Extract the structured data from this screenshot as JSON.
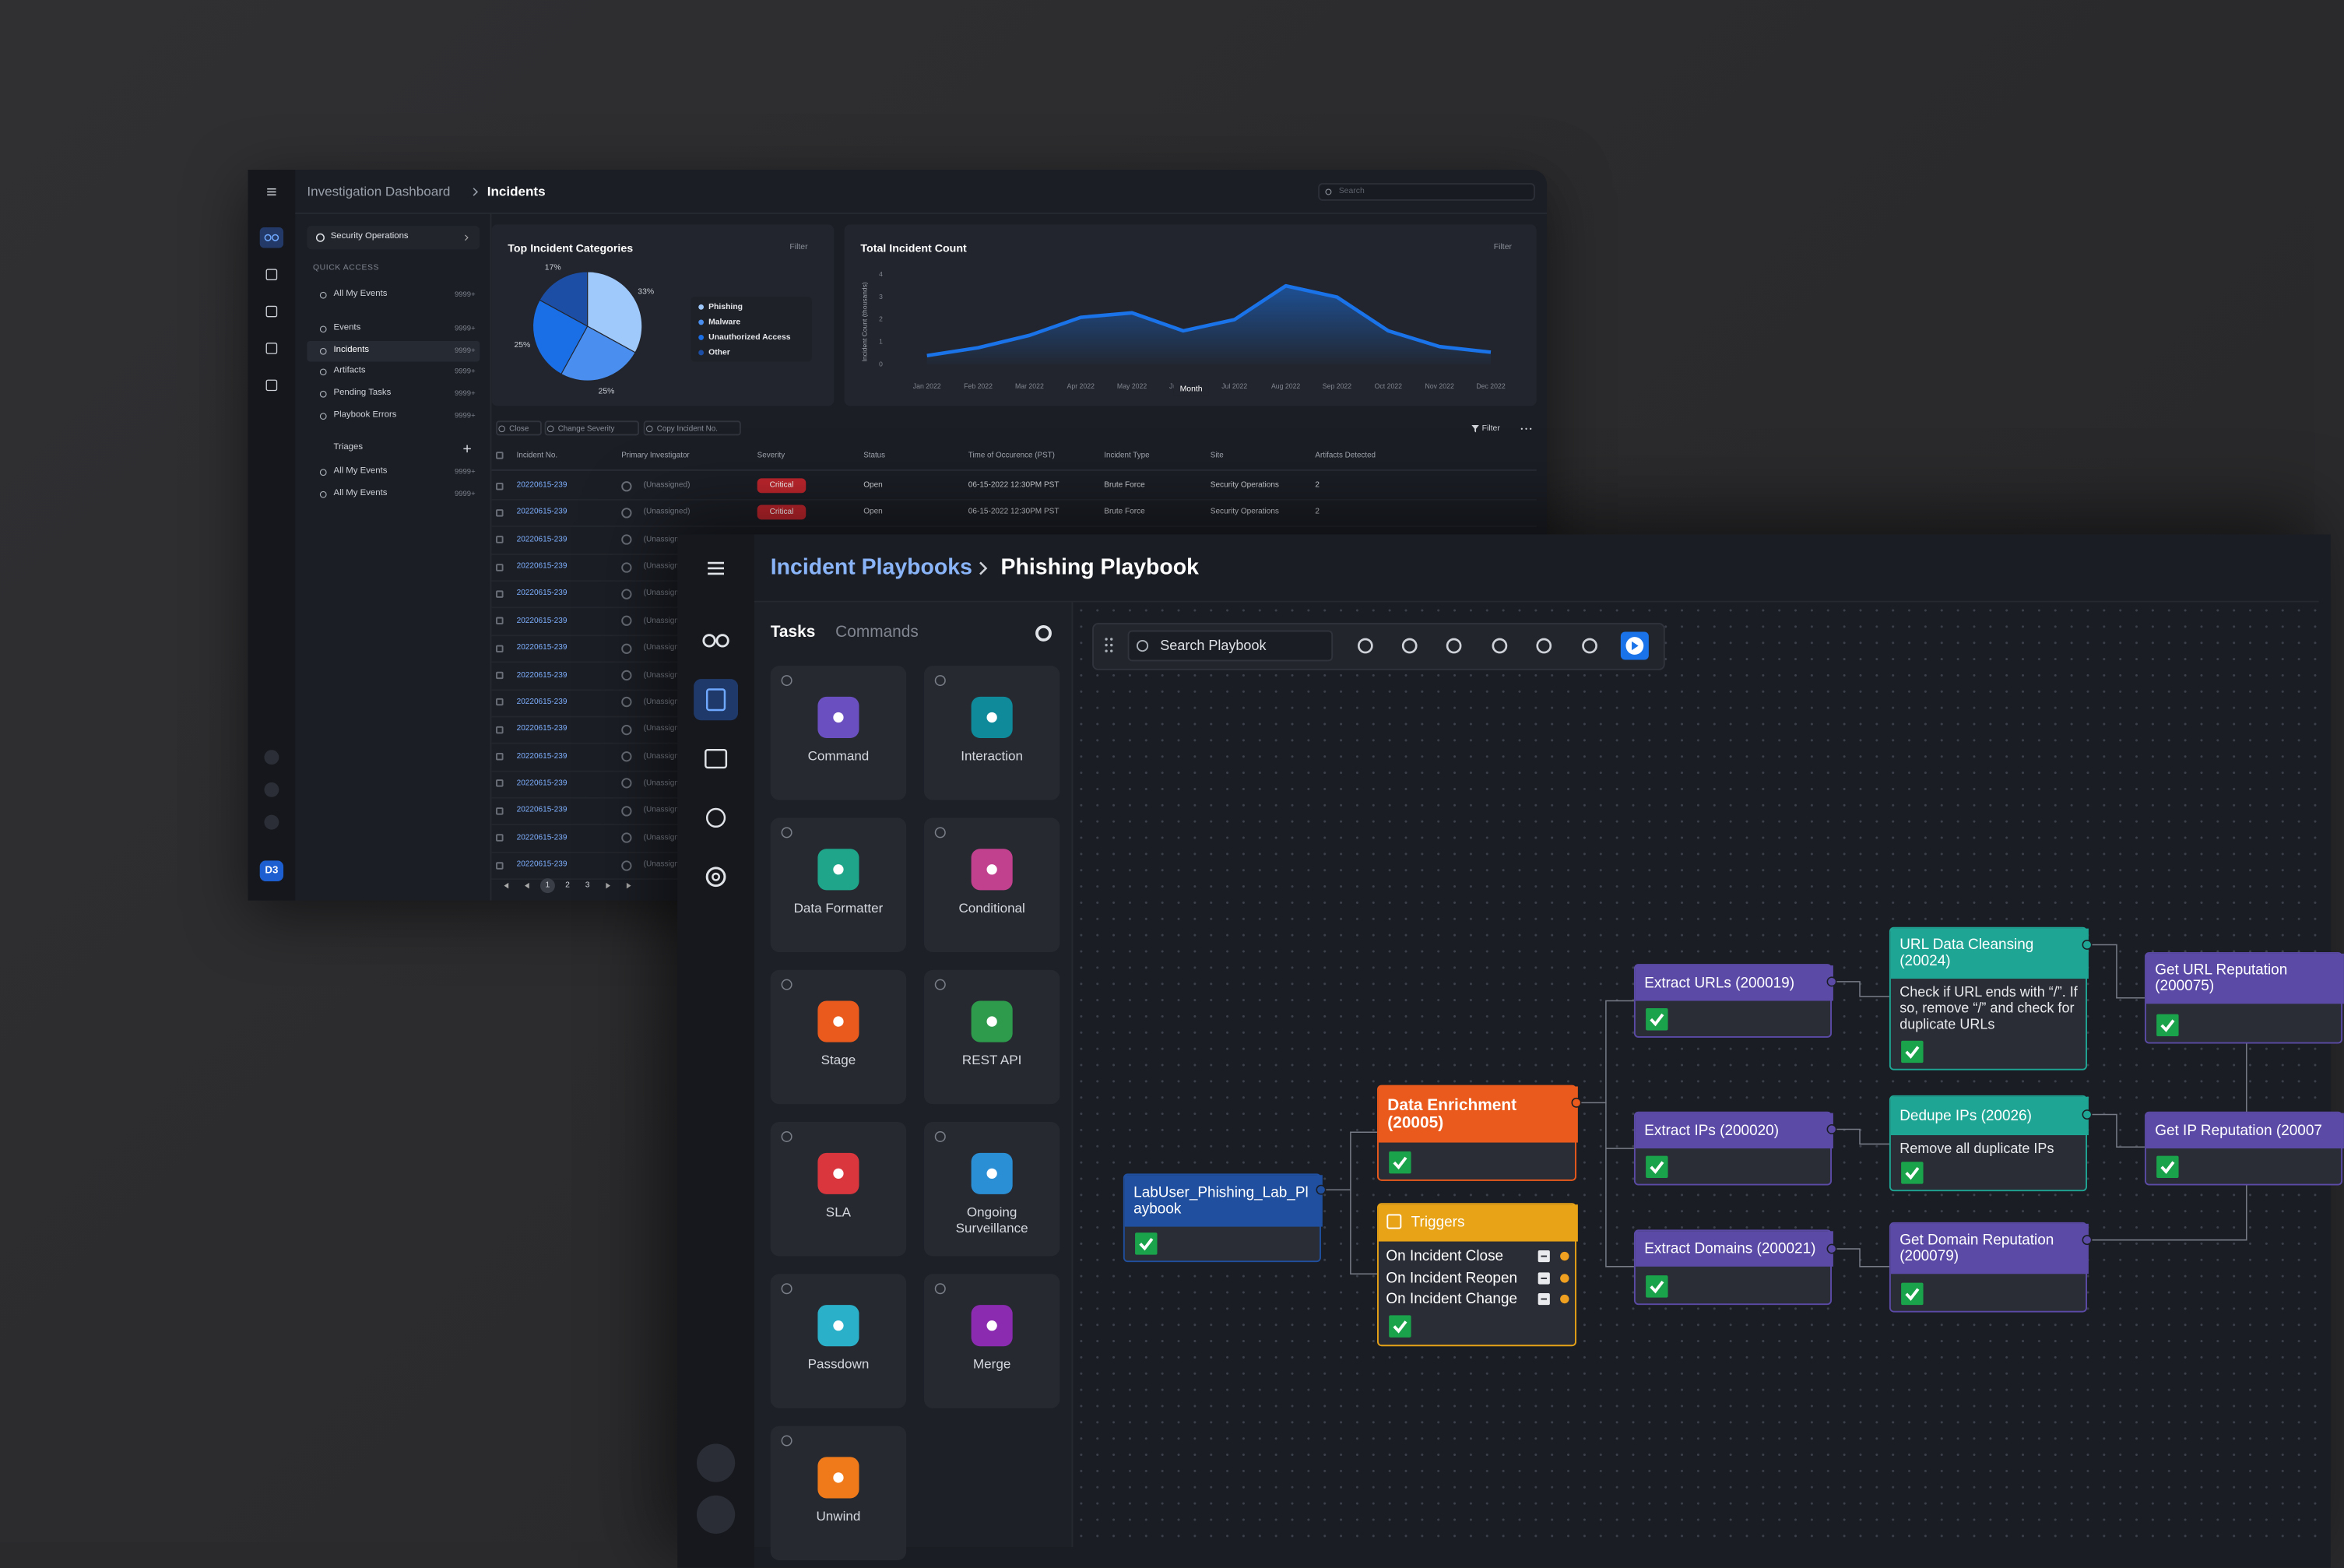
{
  "dashboard": {
    "breadcrumb": [
      "Investigation Dashboard",
      "Incidents"
    ],
    "search": "Search",
    "logo": "D3",
    "org": "Security Operations",
    "quick_access": "QUICK ACCESS",
    "items": [
      {
        "label": "All My Events",
        "count": "9999+"
      },
      {
        "label": "Events",
        "count": "9999+"
      },
      {
        "label": "Incidents",
        "count": "9999+"
      },
      {
        "label": "Artifacts",
        "count": "9999+"
      },
      {
        "label": "Pending Tasks",
        "count": "9999+"
      },
      {
        "label": "Playbook Errors",
        "count": "9999+"
      }
    ],
    "triages": "Triages",
    "triage_items": [
      {
        "label": "All My Events",
        "count": "9999+"
      },
      {
        "label": "All My Events",
        "count": "9999+"
      }
    ],
    "actions": [
      "Close",
      "Change Severity",
      "Copy Incident No."
    ],
    "table_filter": "Filter",
    "headers": [
      "Incident No.",
      "Primary Investigator",
      "Severity",
      "Status",
      "Time of Occurence (PST)",
      "Incident Type",
      "Site",
      "Artifacts Detected"
    ],
    "rows": [
      [
        "20220615-239",
        "(Unassigned)",
        "Critical",
        "Open",
        "06-15-2022 12:30PM PST",
        "Brute Force",
        "Security Operations",
        2
      ],
      [
        "20220615-239",
        "(Unassigned)",
        "Critical",
        "Open",
        "06-15-2022 12:30PM PST",
        "Brute Force",
        "Security Operations",
        2
      ],
      [
        "20220615-239",
        "(Unassigned)"
      ],
      [
        "20220615-239",
        "(Unassigned)"
      ],
      [
        "20220615-239",
        "(Unassigned)"
      ],
      [
        "20220615-239",
        "(Unassigned)"
      ],
      [
        "20220615-239",
        "(Unassigned)"
      ],
      [
        "20220615-239",
        "(Unassigned)"
      ],
      [
        "20220615-239",
        "(Unassigned)"
      ],
      [
        "20220615-239",
        "(Unassigned)"
      ],
      [
        "20220615-239",
        "(Unassigned)"
      ],
      [
        "20220615-239",
        "(Unassigned)"
      ],
      [
        "20220615-239",
        "(Unassigned)"
      ],
      [
        "20220615-239",
        "(Unassigned)"
      ],
      [
        "20220615-239",
        "(Unassigned)"
      ]
    ],
    "pages": [
      1,
      2,
      3
    ]
  },
  "chart_data": [
    {
      "type": "pie",
      "title": "Top Incident Categories",
      "filter": "Filter",
      "categories": [
        "Phishing",
        "Malware",
        "Unauthorized Access",
        "Other"
      ],
      "values": [
        33,
        25,
        25,
        17
      ],
      "value_labels": [
        "33%",
        "25%",
        "25%",
        "17%"
      ],
      "colors": [
        "#9fc8fb",
        "#4a8ff0",
        "#1a6fe6",
        "#1c4ea6"
      ],
      "legend": "right"
    },
    {
      "type": "line",
      "title": "Total Incident Count",
      "filter": "Filter",
      "x_label": "Month",
      "y_label": "Incident Count (thousands)",
      "categories": [
        "Jan 2022",
        "Feb 2022",
        "Mar 2022",
        "Apr 2022",
        "May 2022",
        "Jun 2022",
        "Jul 2022",
        "Aug 2022",
        "Sep 2022",
        "Oct 2022",
        "Nov 2022",
        "Dec 2022"
      ],
      "values": [
        0.4,
        0.75,
        1.3,
        2.1,
        2.3,
        1.5,
        2.0,
        3.5,
        3.0,
        1.5,
        0.8,
        0.55
      ],
      "color": "#1a73e8",
      "area": true,
      "ylim": [
        0,
        4
      ],
      "yticks": [
        0,
        1,
        2,
        3,
        4
      ],
      "grid": false
    }
  ],
  "playbook": {
    "breadcrumb": [
      "Incident Playbooks",
      "Phishing Playbook"
    ],
    "tabs": [
      "Tasks",
      "Commands"
    ],
    "tasks": [
      {
        "label": "Command",
        "color": "#6a4fc0"
      },
      {
        "label": "Interaction",
        "color": "#0f8a9b"
      },
      {
        "label": "Data Formatter",
        "color": "#1fa58a"
      },
      {
        "label": "Conditional",
        "color": "#c2418f"
      },
      {
        "label": "Stage",
        "color": "#ea5a1c"
      },
      {
        "label": "REST API",
        "color": "#2e9a4b"
      },
      {
        "label": "SLA",
        "color": "#d9363e"
      },
      {
        "label": "Ongoing Surveillance",
        "color": "#2b8fd6"
      },
      {
        "label": "Passdown",
        "color": "#2bb0c9"
      },
      {
        "label": "Merge",
        "color": "#8a2bb0"
      },
      {
        "label": "Unwind",
        "color": "#f07a1a"
      }
    ],
    "search": "Search Playbook",
    "nodes": [
      {
        "title": "LabUser_Phishing_Lab_Playbook",
        "color": "#1f4f9e"
      },
      {
        "title": "Data Enrichment (20005)",
        "color": "#ea5a1c"
      },
      {
        "title": "Extract URLs (200019)",
        "color": "#5b4aa6"
      },
      {
        "title": "Extract IPs (200020)",
        "color": "#5b4aa6"
      },
      {
        "title": "Extract Domains (200021)",
        "color": "#5b4aa6"
      },
      {
        "title": "URL Data Cleansing (20024)",
        "color": "#1fa594",
        "description": "Check if URL ends with “/”. If so, remove “/” and check for duplicate URLs"
      },
      {
        "title": "Dedupe IPs (20026)",
        "color": "#1fa594",
        "description": "Remove all duplicate IPs"
      },
      {
        "title": "Get Domain Reputation (200079)",
        "color": "#5b4aa6"
      },
      {
        "title": "Get URL Reputation (200075)",
        "color": "#5b4aa6"
      },
      {
        "title": "Get IP Reputation (20007",
        "color": "#5b4aa6"
      }
    ],
    "triggers": {
      "title": "Triggers",
      "color": "#e8a317",
      "items": [
        "On Incident Close",
        "On Incident Reopen",
        "On Incident Change"
      ]
    }
  }
}
